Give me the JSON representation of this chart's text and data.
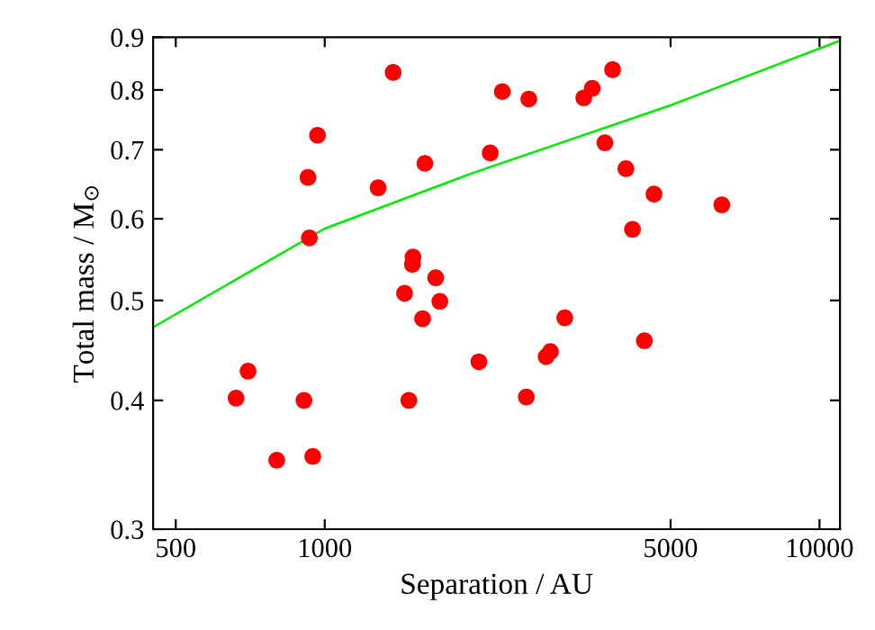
{
  "chart_data": {
    "type": "scatter",
    "xlabel": "Separation / AU",
    "ylabel": "Total mass / M$_{⊙}$",
    "log": "xy",
    "xlim": [
      450,
      11000
    ],
    "ylim": [
      0.3,
      0.9
    ],
    "xticks": [
      500,
      1000,
      5000,
      10000
    ],
    "yticks": [
      0.3,
      0.4,
      0.5,
      0.6,
      0.7,
      0.8,
      0.9
    ],
    "grid": false,
    "legend": false,
    "marker": "circle",
    "series": [
      {
        "color": "#ff0000",
        "x": [
          662,
          700,
          800,
          908,
          946,
          925,
          931,
          967,
          1282,
          1375,
          1594,
          1508,
          1504,
          1450,
          1676,
          1709,
          1577,
          1479,
          2049,
          2160,
          2285,
          2585,
          3339,
          3473,
          3818,
          3683,
          4062,
          4629,
          4188,
          6346,
          3056,
          4426,
          2858,
          2802,
          2555
        ],
        "values": [
          0.402,
          0.427,
          0.35,
          0.4,
          0.353,
          0.658,
          0.575,
          0.723,
          0.643,
          0.832,
          0.679,
          0.551,
          0.542,
          0.508,
          0.526,
          0.499,
          0.48,
          0.4,
          0.436,
          0.695,
          0.797,
          0.784,
          0.786,
          0.803,
          0.837,
          0.711,
          0.671,
          0.634,
          0.586,
          0.619,
          0.481,
          0.457,
          0.446,
          0.441,
          0.403
        ]
      },
      {
        "type": "line",
        "color": "#00ee00",
        "marker": "none",
        "line_style": "solid",
        "x": [
          450,
          1000,
          2000,
          5000,
          11000
        ],
        "values": [
          0.471,
          0.587,
          0.665,
          0.773,
          0.893
        ]
      }
    ]
  }
}
